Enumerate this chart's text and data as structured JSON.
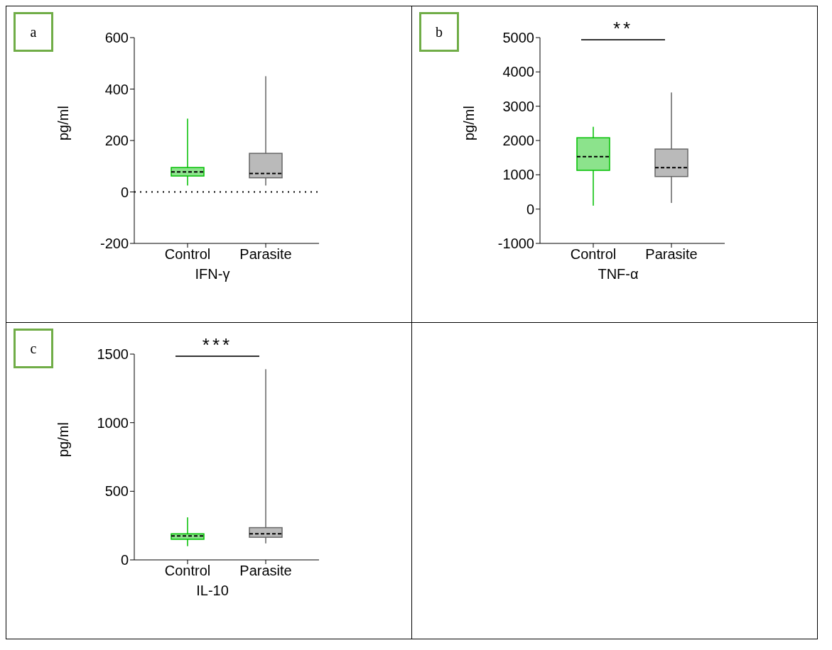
{
  "chart_data": [
    {
      "type": "box",
      "title": "a",
      "xlabel": "IFN-γ",
      "ylabel": "pg/ml",
      "categories": [
        "Control",
        "Parasite"
      ],
      "colors": [
        "#00c000",
        "#666666"
      ],
      "boxes": [
        {
          "low": 25,
          "q1": 62,
          "median": 78,
          "q3": 95,
          "high": 285
        },
        {
          "low": 25,
          "q1": 55,
          "median": 72,
          "q3": 150,
          "high": 450
        }
      ],
      "ylim": [
        -200,
        600
      ],
      "yticks": [
        -200,
        0,
        200,
        400,
        600
      ],
      "ref_lines": [
        {
          "axis": "y",
          "value": 0,
          "line_style": "dotted",
          "color": "#000000"
        }
      ]
    },
    {
      "type": "box",
      "title": "b",
      "xlabel": "TNF-α",
      "ylabel": "pg/ml",
      "categories": [
        "Control",
        "Parasite"
      ],
      "colors": [
        "#00c000",
        "#666666"
      ],
      "boxes": [
        {
          "low": 100,
          "q1": 1130,
          "median": 1530,
          "q3": 2080,
          "high": 2400
        },
        {
          "low": 180,
          "q1": 950,
          "median": 1210,
          "q3": 1750,
          "high": 3400
        }
      ],
      "ylim": [
        -1000,
        5000
      ],
      "yticks": [
        -1000,
        0,
        1000,
        2000,
        3000,
        4000,
        5000
      ],
      "annotations": [
        "**"
      ]
    },
    {
      "type": "box",
      "title": "c",
      "xlabel": "IL-10",
      "ylabel": "pg/ml",
      "categories": [
        "Control",
        "Parasite"
      ],
      "colors": [
        "#00c000",
        "#666666"
      ],
      "boxes": [
        {
          "low": 100,
          "q1": 150,
          "median": 175,
          "q3": 190,
          "high": 310
        },
        {
          "low": 120,
          "q1": 165,
          "median": 190,
          "q3": 235,
          "high": 1390
        }
      ],
      "ylim": [
        0,
        1500
      ],
      "yticks": [
        0,
        500,
        1000,
        1500
      ],
      "annotations": [
        "***"
      ]
    }
  ]
}
